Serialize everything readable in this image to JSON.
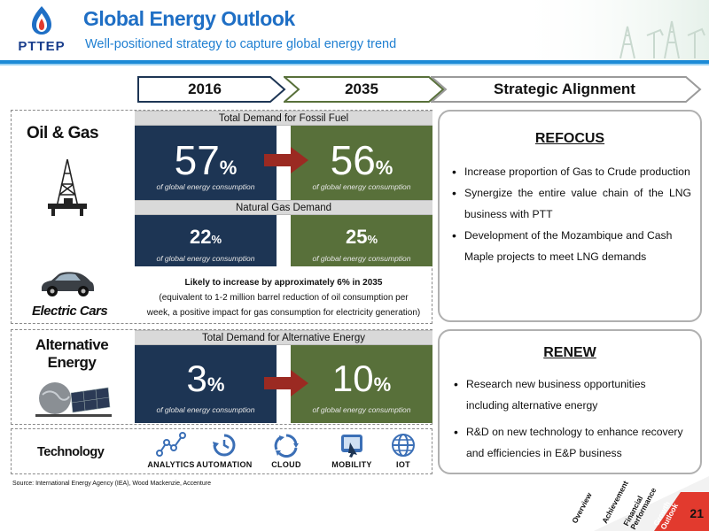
{
  "header": {
    "logo_text": "PTTEP",
    "title": "Global Energy Outlook",
    "subtitle": "Well-positioned strategy to capture global energy trend"
  },
  "columns": {
    "col1": "2016",
    "col2": "2035",
    "col3": "Strategic Alignment"
  },
  "categories": {
    "oil_gas": "Oil & Gas",
    "electric_cars": "Electric Cars",
    "alternative_energy": "Alternative Energy",
    "technology": "Technology"
  },
  "fossil": {
    "bar_label": "Total Demand for Fossil Fuel",
    "val_2016": "57",
    "val_2035": "56",
    "unit": "%",
    "caption": "of global energy consumption"
  },
  "gas": {
    "bar_label": "Natural Gas Demand",
    "val_2016": "22",
    "val_2035": "25",
    "unit": "%",
    "caption": "of global energy consumption"
  },
  "note": {
    "line1": "Likely to increase by approximately 6% in 2035",
    "line2": "(equivalent to 1-2 million barrel reduction of oil consumption per",
    "line3": "week, a positive impact for gas consumption for electricity generation)"
  },
  "alt": {
    "bar_label": "Total Demand for Alternative Energy",
    "val_2016": "3",
    "val_2035": "10",
    "unit": "%",
    "caption": "of global energy consumption"
  },
  "refocus": {
    "title": "REFOCUS",
    "items": [
      "Increase proportion of Gas to Crude production",
      "Synergize the entire value chain of the LNG business with PTT",
      "Development of the Mozambique and Cash Maple projects to meet LNG demands"
    ]
  },
  "renew": {
    "title": "RENEW",
    "items": [
      "Research new business opportunities including alternative energy",
      "R&D on new technology to enhance recovery and efficiencies in E&P business"
    ]
  },
  "technology": {
    "items": [
      {
        "label": "ANALYTICS",
        "icon": "analytics-icon"
      },
      {
        "label": "AUTOMATION",
        "icon": "automation-icon"
      },
      {
        "label": "CLOUD",
        "icon": "cloud-icon"
      },
      {
        "label": "MOBILITY",
        "icon": "mobility-icon"
      },
      {
        "label": "IOT",
        "icon": "iot-icon"
      }
    ]
  },
  "source": "Source: International Energy Agency (IEA), Wood Mackenzie, Accenture",
  "nav": {
    "items": [
      "Overview",
      "Achievement",
      "Financial Performance",
      "Growth Outlook"
    ],
    "active": "Growth Outlook"
  },
  "page_number": "21",
  "colors": {
    "title_blue": "#1f6fc5",
    "navy": "#1d3554",
    "olive": "#58703a",
    "arrow_red": "#9b2a22",
    "nav_active": "#e23a2e"
  }
}
